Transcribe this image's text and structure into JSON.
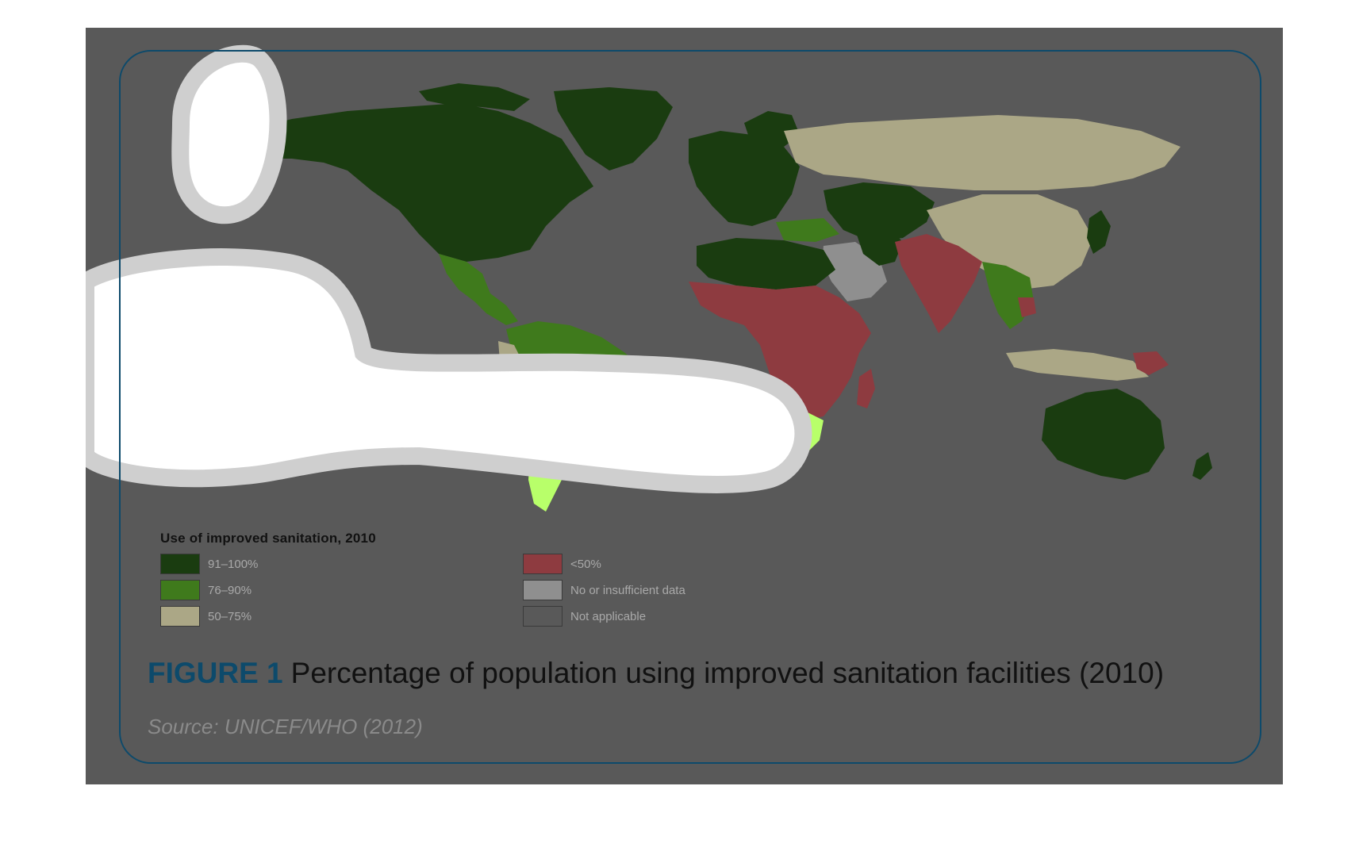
{
  "legend": {
    "title": "Use of improved sanitation, 2010",
    "items": [
      {
        "label": "91–100%",
        "color": "#1a3c10"
      },
      {
        "label": "76–90%",
        "color": "#3f7a1c"
      },
      {
        "label": "50–75%",
        "color": "#aba786"
      },
      {
        "label": "<50%",
        "color": "#8e3b40"
      },
      {
        "label": "No or insufficient data",
        "color": "#8f8f8f"
      },
      {
        "label": "Not applicable",
        "color": "#595959"
      }
    ]
  },
  "caption": {
    "figure_label": "FIGURE 1",
    "text": "Percentage of population using improved sanitation facilities (2010)"
  },
  "source": "Source: UNICEF/WHO (2012)",
  "colors": {
    "panel": "#595959",
    "frame": "#0d4a6b",
    "overlay_highlight": "#ffffff"
  }
}
